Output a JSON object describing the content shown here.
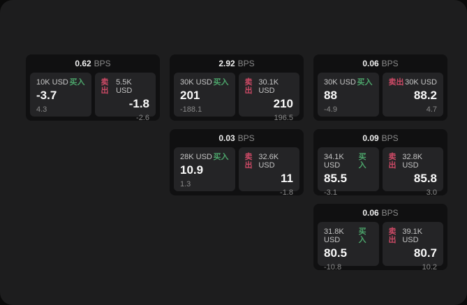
{
  "app": {
    "background_outer": "#0a0a0a",
    "background_panel": "#1d1d1e",
    "card_background": "#101011",
    "tile_background": "#242426"
  },
  "labels": {
    "bps": "BPS",
    "buy": "买入",
    "sell": "卖出"
  },
  "colors": {
    "buy_green": "#4ca56b",
    "sell_red": "#cd4a66"
  },
  "cards": [
    {
      "bps": "0.62",
      "buy": {
        "size": "10K USD",
        "price": "-3.7",
        "delta": "4.3"
      },
      "sell": {
        "size": "5.5K USD",
        "price": "-1.8",
        "delta": "-2.6"
      }
    },
    {
      "bps": "2.92",
      "buy": {
        "size": "30K USD",
        "price": "201",
        "delta": "-188.1"
      },
      "sell": {
        "size": "30.1K USD",
        "price": "210",
        "delta": "196.5"
      }
    },
    {
      "bps": "0.06",
      "buy": {
        "size": "30K USD",
        "price": "88",
        "delta": "-4.9"
      },
      "sell": {
        "size": "30K USD",
        "price": "88.2",
        "delta": "4.7"
      }
    },
    {
      "bps": "0.03",
      "buy": {
        "size": "28K USD",
        "price": "10.9",
        "delta": "1.3"
      },
      "sell": {
        "size": "32.6K USD",
        "price": "11",
        "delta": "-1.8"
      }
    },
    {
      "bps": "0.09",
      "buy": {
        "size": "34.1K USD",
        "price": "85.5",
        "delta": "-3.1"
      },
      "sell": {
        "size": "32.8K USD",
        "price": "85.8",
        "delta": "3.0"
      }
    },
    {
      "bps": "0.06",
      "buy": {
        "size": "31.8K USD",
        "price": "80.5",
        "delta": "-10.8"
      },
      "sell": {
        "size": "39.1K USD",
        "price": "80.7",
        "delta": "10.2"
      }
    }
  ]
}
